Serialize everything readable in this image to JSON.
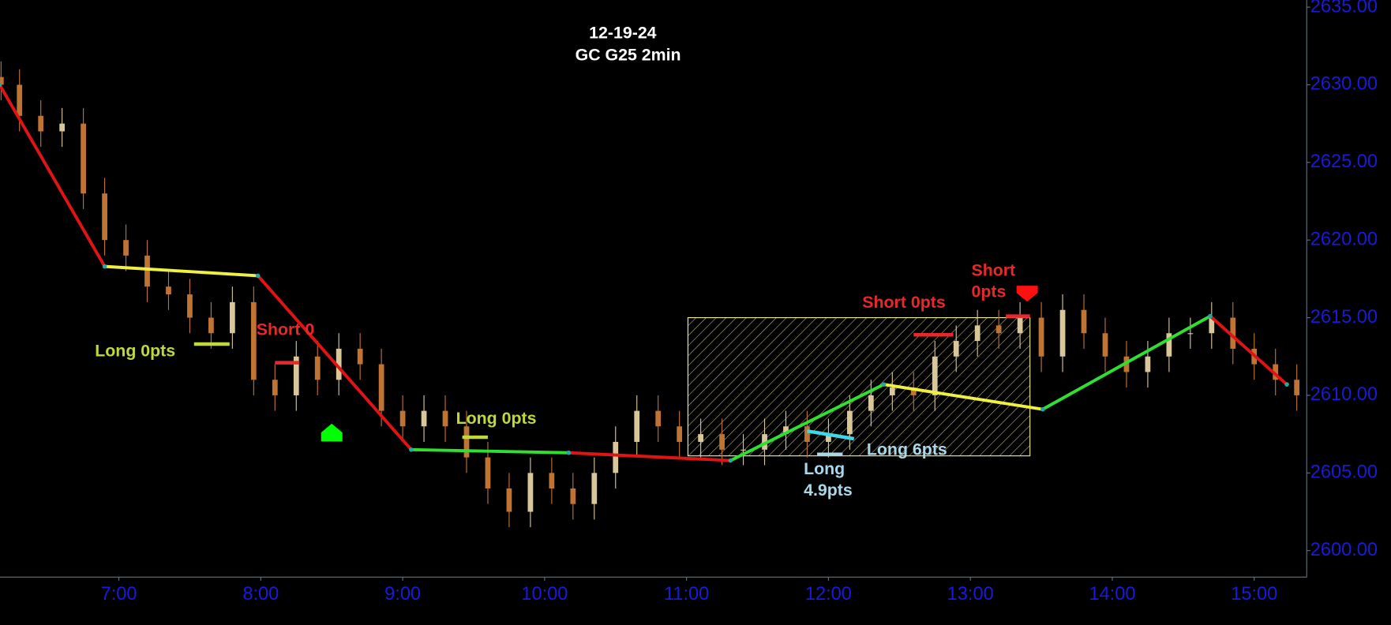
{
  "chart_data": {
    "type": "candlestick",
    "title": "12-19-24",
    "subtitle": "GC G25 2min",
    "xlim": [
      6.1625,
      15.37
    ],
    "ylim": [
      2598.29,
      2635.46
    ],
    "xticks": [
      {
        "value": 7,
        "label": "7:00"
      },
      {
        "value": 8,
        "label": "8:00"
      },
      {
        "value": 9,
        "label": "9:00"
      },
      {
        "value": 10,
        "label": "10:00"
      },
      {
        "value": 11,
        "label": "11:00"
      },
      {
        "value": 12,
        "label": "12:00"
      },
      {
        "value": 13,
        "label": "13:00"
      },
      {
        "value": 14,
        "label": "14:00"
      },
      {
        "value": 15,
        "label": "15:00"
      }
    ],
    "yticks": [
      {
        "value": 2600,
        "label": "2600.00"
      },
      {
        "value": 2605,
        "label": "2605.00"
      },
      {
        "value": 2610,
        "label": "2610.00"
      },
      {
        "value": 2615,
        "label": "2615.00"
      },
      {
        "value": 2620,
        "label": "2620.00"
      },
      {
        "value": 2625,
        "label": "2625.00"
      },
      {
        "value": 2630,
        "label": "2630.00"
      },
      {
        "value": 2635,
        "label": "2635.00"
      }
    ],
    "up_color": "#d9c79a",
    "down_color": "#c07433",
    "candles": {
      "x": [
        6.17,
        6.3,
        6.45,
        6.6,
        6.75,
        6.9,
        7.05,
        7.2,
        7.35,
        7.5,
        7.65,
        7.8,
        7.95,
        8.1,
        8.25,
        8.4,
        8.55,
        8.7,
        8.85,
        9.0,
        9.15,
        9.3,
        9.45,
        9.6,
        9.75,
        9.9,
        10.05,
        10.2,
        10.35,
        10.5,
        10.65,
        10.8,
        10.95,
        11.1,
        11.25,
        11.4,
        11.55,
        11.7,
        11.85,
        12.0,
        12.15,
        12.3,
        12.45,
        12.6,
        12.75,
        12.9,
        13.05,
        13.2,
        13.35,
        13.5,
        13.65,
        13.8,
        13.95,
        14.1,
        14.25,
        14.4,
        14.55,
        14.7,
        14.85,
        15.0,
        15.15,
        15.3
      ],
      "open": [
        2630.5,
        2630,
        2628,
        2627,
        2627.5,
        2623,
        2620,
        2619,
        2617,
        2616.5,
        2615,
        2614,
        2616,
        2611,
        2610,
        2612.5,
        2611,
        2613,
        2612,
        2609,
        2608,
        2609,
        2608,
        2606,
        2604,
        2602.5,
        2605,
        2604,
        2603,
        2605,
        2607,
        2609,
        2608,
        2607,
        2607.5,
        2606.5,
        2606.5,
        2607.5,
        2608,
        2607,
        2607.5,
        2609,
        2610,
        2610.5,
        2610,
        2612.5,
        2613.5,
        2614.5,
        2614,
        2615,
        2612.5,
        2615.5,
        2614,
        2612.5,
        2611.5,
        2612.5,
        2614,
        2614,
        2615,
        2613,
        2612,
        2611
      ],
      "high": [
        2631.5,
        2631,
        2629,
        2628.5,
        2628.5,
        2624,
        2621,
        2620,
        2618,
        2617.5,
        2616,
        2617,
        2617,
        2612,
        2613.5,
        2613.5,
        2614,
        2614,
        2613,
        2610,
        2610,
        2610,
        2609,
        2607,
        2605,
        2606,
        2606,
        2605,
        2606,
        2608,
        2610,
        2610,
        2609,
        2608.5,
        2608.5,
        2607.5,
        2608.5,
        2609,
        2609,
        2608.5,
        2610,
        2611,
        2611.5,
        2611.5,
        2613.5,
        2614.5,
        2615.5,
        2615.5,
        2616,
        2616,
        2616.5,
        2616.5,
        2615,
        2613.5,
        2613.5,
        2615,
        2615,
        2616,
        2616,
        2614,
        2613,
        2612
      ],
      "low": [
        2629,
        2627,
        2626,
        2626,
        2622,
        2619,
        2618,
        2616,
        2615.5,
        2614,
        2613,
        2613,
        2610,
        2609,
        2609,
        2610,
        2610,
        2611,
        2608,
        2607,
        2607,
        2607,
        2605,
        2603,
        2601.5,
        2601.5,
        2603,
        2602,
        2602,
        2604,
        2606,
        2607,
        2606,
        2606,
        2605.5,
        2605.5,
        2605.5,
        2606.5,
        2606,
        2606,
        2606.5,
        2608,
        2609,
        2609,
        2609,
        2611.5,
        2612.5,
        2613,
        2613,
        2611.5,
        2611.5,
        2613,
        2611.5,
        2610.5,
        2610.5,
        2611.5,
        2613,
        2613,
        2612,
        2611,
        2610,
        2609
      ],
      "close": [
        2630,
        2628,
        2627,
        2627.5,
        2623,
        2620,
        2619,
        2617,
        2616.5,
        2615,
        2614,
        2616,
        2611,
        2610,
        2612.5,
        2611,
        2613,
        2612,
        2609,
        2608,
        2609,
        2608,
        2606,
        2604,
        2602.5,
        2605,
        2604,
        2603,
        2605,
        2607,
        2609,
        2608,
        2607,
        2607.5,
        2606.5,
        2606.5,
        2607.5,
        2608,
        2607,
        2607.5,
        2609,
        2610,
        2610.5,
        2610,
        2612.5,
        2613.5,
        2614.5,
        2614,
        2615,
        2612.5,
        2615.5,
        2614,
        2612.5,
        2611.5,
        2612.5,
        2614,
        2614,
        2615,
        2613,
        2612,
        2611,
        2610
      ]
    },
    "swings": {
      "x": [
        6.16,
        6.9,
        7.98,
        9.06,
        10.17,
        11.31,
        12.39,
        13.51,
        14.69,
        15.23
      ],
      "y": [
        2630,
        2618.3,
        2617.7,
        2606.5,
        2606.3,
        2605.8,
        2610.7,
        2609.1,
        2615.1,
        2610.7
      ],
      "colors": [
        "#e01414",
        "#f0f040",
        "#e01414",
        "#30e030",
        "#e01414",
        "#30e030",
        "#f0f040",
        "#30e030",
        "#e01414"
      ]
    },
    "zone": {
      "x": [
        11.01,
        13.42
      ],
      "y": [
        2606.1,
        2615.0
      ],
      "color": "#f2eca0"
    },
    "trades": [
      {
        "label": [
          "Long 0pts"
        ],
        "color": "#c0d83a",
        "label_color": "#c0d83a",
        "x": [
          7.53,
          7.78
        ],
        "y": [
          2613.3,
          2613.3
        ]
      },
      {
        "label": [
          "Short 0"
        ],
        "color": "#e8282a",
        "label_color": "#e8282a",
        "x": [
          8.1,
          8.27
        ],
        "y": [
          2612.1,
          2612.1
        ]
      },
      {
        "label": [
          "Long 0pts"
        ],
        "color": "#c0d83a",
        "label_color": "#c0d83a",
        "x": [
          9.42,
          9.6
        ],
        "y": [
          2607.3,
          2607.3
        ]
      },
      {
        "label": [
          "Short 0pts"
        ],
        "color": "#e8282a",
        "label_color": "#e8282a",
        "x": [
          12.6,
          12.88
        ],
        "y": [
          2613.9,
          2613.9
        ]
      },
      {
        "label": [
          "Short",
          "0pts"
        ],
        "color": "#e8282a",
        "label_color": "#e8282a",
        "x": [
          13.25,
          13.42
        ],
        "y": [
          2615.1,
          2615.1
        ]
      },
      {
        "label": [
          "Long 6pts"
        ],
        "color": "#3fd6e8",
        "label_color": "#a8d8ea",
        "x": [
          11.85,
          12.18
        ],
        "y": [
          2607.7,
          2607.2
        ]
      },
      {
        "label": [
          "Long",
          "4.9pts"
        ],
        "color": "#a8d8ea",
        "label_color": "#a8d8ea",
        "x": [
          11.92,
          12.1
        ],
        "y": [
          2606.2,
          2606.2
        ]
      }
    ],
    "markers": [
      {
        "x": 8.5,
        "y": 2607.6,
        "color": "#00ff00",
        "direction": "up"
      },
      {
        "x": 13.4,
        "y": 2616.6,
        "color": "#ff1010",
        "direction": "down"
      }
    ]
  }
}
